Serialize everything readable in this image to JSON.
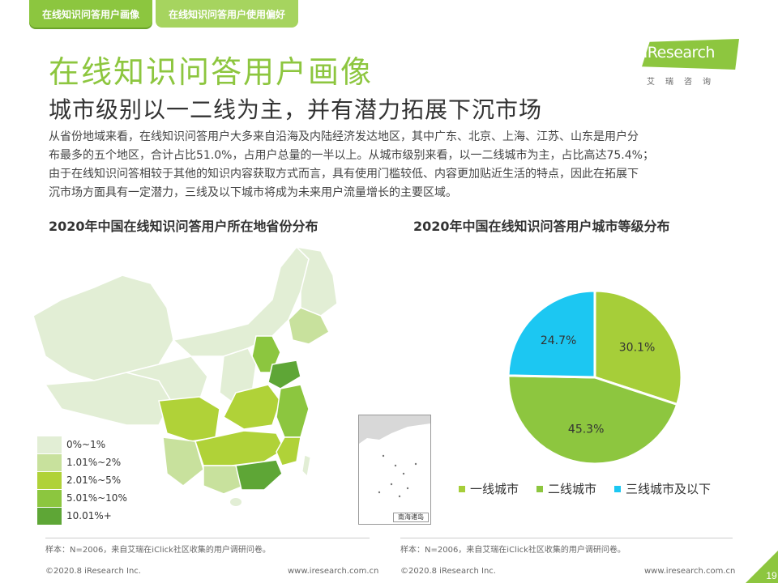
{
  "tabs": [
    {
      "label": "在线知识问答用户画像"
    },
    {
      "label": "在线知识问答用户使用偏好"
    }
  ],
  "logo": {
    "word": "iResearch",
    "sub": "艾瑞咨询"
  },
  "title": "在线知识问答用户画像",
  "subtitle": "城市级别以一二线为主，并有潜力拓展下沉市场",
  "body_lines": [
    "从省份地域来看，在线知识问答用户大多来自沿海及内陆经济发达地区，其中广东、北京、上海、江苏、山东是用户分",
    "布最多的五个地区，合计占比51.0%，占用户总量的一半以上。从城市级别来看，以一二线城市为主，占比高达75.4%；",
    "由于在线知识问答相较于其他的知识内容获取方式而言，具有使用门槛较低、内容更加贴近生活的特点，因此在拓展下",
    "沉市场方面具有一定潜力，三线及以下城市将成为未来用户流量增长的主要区域。"
  ],
  "map": {
    "title": "2020年中国在线知识问答用户所在地省份分布",
    "inset_caption": "南海诸岛",
    "legend": [
      {
        "label": "0%~1%",
        "color": "#e2eed5"
      },
      {
        "label": "1.01%~2%",
        "color": "#c8e19d"
      },
      {
        "label": "2.01%~5%",
        "color": "#b0d238"
      },
      {
        "label": "5.01%~10%",
        "color": "#8cc63f"
      },
      {
        "label": "10.01%+",
        "color": "#5ea636"
      }
    ]
  },
  "chart_data": {
    "type": "pie",
    "title": "2020年中国在线知识问答用户城市等级分布",
    "categories": [
      "一线城市",
      "二线城市",
      "三线城市及以下"
    ],
    "values": [
      30.1,
      45.3,
      24.7
    ],
    "labels": [
      "30.1%",
      "45.3%",
      "24.7%"
    ],
    "colors": [
      "#a6ce39",
      "#8dc63f",
      "#1cc7f2"
    ],
    "legend_position": "bottom"
  },
  "footnotes": {
    "left_source": "样本：N=2006，来自艾瑞在iClick社区收集的用户调研问卷。",
    "right_source": "样本：N=2006，来自艾瑞在iClick社区收集的用户调研问卷。",
    "left_copyright": "©2020.8 iResearch Inc.",
    "left_url": "www.iresearch.com.cn",
    "right_copyright": "©2020.8 iResearch Inc.",
    "right_url": "www.iresearch.com.cn"
  },
  "page_number": "19"
}
